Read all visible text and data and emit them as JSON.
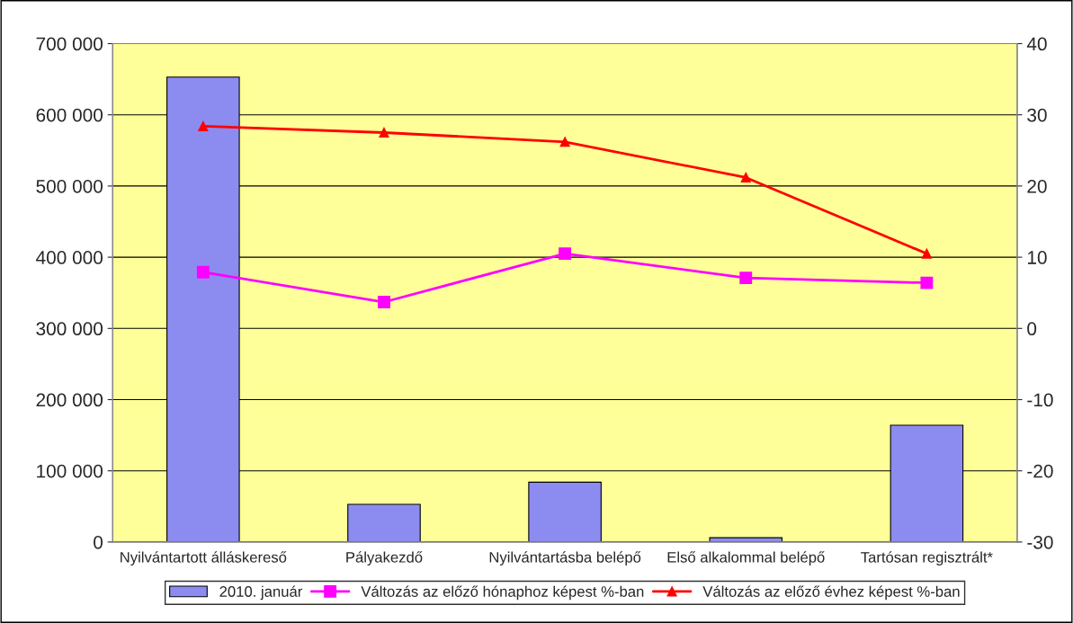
{
  "chart_data": {
    "type": "bar",
    "categories": [
      "Nyilvántartott álláskereső",
      "Pályakezdő",
      "Nyilvántartásba belépő",
      "Első alkalommal belépő",
      "Tartósan regisztrált*"
    ],
    "series": [
      {
        "name": "2010. január",
        "color": "#8c8cf0",
        "values": [
          653000,
          53000,
          84000,
          6000,
          164000
        ]
      },
      {
        "name": "Változás az előző hónaphoz képest %-ban",
        "type": "line",
        "axis": "y2",
        "color": "#ff00ff",
        "marker": "square",
        "values": [
          7.9,
          3.7,
          10.5,
          7.1,
          6.4
        ]
      },
      {
        "name": "Változás az előző évhez képest %-ban",
        "type": "line",
        "axis": "y2",
        "color": "#ff0000",
        "marker": "triangle",
        "values": [
          28.4,
          27.5,
          26.2,
          21.2,
          10.5
        ]
      }
    ],
    "ylim": [
      0,
      700000
    ],
    "yticks": [
      0,
      {
        "value": 100000,
        "label": "100 000"
      },
      {
        "value": 200000,
        "label": "200 000"
      },
      {
        "value": 300000,
        "label": "300 000"
      },
      {
        "value": 400000,
        "label": "400 000"
      },
      {
        "value": 500000,
        "label": "500 000"
      },
      {
        "value": 600000,
        "label": "600 000"
      },
      {
        "value": 700000,
        "label": "700 000"
      }
    ],
    "y2lim": [
      -30,
      40
    ],
    "y2ticks": [
      -30,
      -20,
      -10,
      0,
      10,
      20,
      30,
      40
    ],
    "grid": "y",
    "legend": "bottom"
  }
}
